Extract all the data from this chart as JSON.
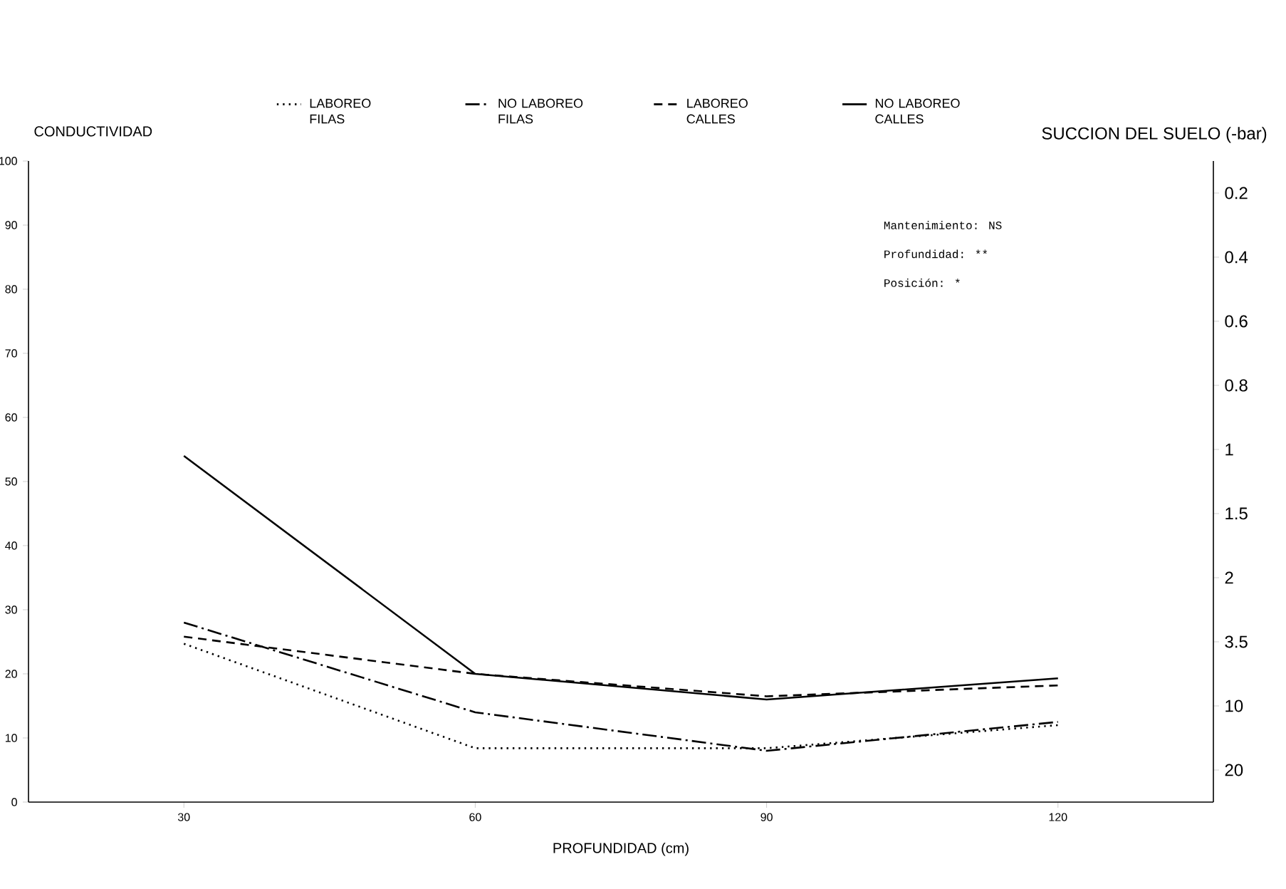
{
  "chart_data": {
    "type": "line",
    "x": [
      30,
      60,
      90,
      120
    ],
    "xlim": [
      14,
      136
    ],
    "xticks": [
      30,
      60,
      90,
      120
    ],
    "ylim": [
      0,
      100
    ],
    "yticks": [
      0,
      10,
      20,
      30,
      40,
      50,
      60,
      70,
      80,
      90,
      100
    ],
    "y2_categories": [
      "0.2",
      "0.4",
      "0.6",
      "0.8",
      "1",
      "1.5",
      "2",
      "3.5",
      "10",
      "20"
    ],
    "xlabel": "PROFUNDIDAD (cm)",
    "ylabel": "CONDUCTIVIDAD",
    "y2label": "SUCCION DEL SUELO (-bar)",
    "legend": "top",
    "annotations": [
      "Mantenimiento: NS",
      "Profundidad: **",
      "Posición: *"
    ],
    "series": [
      {
        "name": "LABOREO FILAS",
        "color": "#000000",
        "line_style": "dotted",
        "values": [
          24.7,
          8.4,
          8.4,
          12
        ]
      },
      {
        "name": "NO LABOREO FILAS",
        "color": "#000000",
        "line_style": "dashdot",
        "values": [
          28,
          14,
          8,
          12.5
        ]
      },
      {
        "name": "LABOREO CALLES",
        "color": "#000000",
        "line_style": "dashed",
        "values": [
          25.8,
          20,
          16.5,
          18.2
        ]
      },
      {
        "name": "NO LABOREO CALLES",
        "color": "#000000",
        "line_style": "solid",
        "values": [
          54,
          20,
          16,
          19.3
        ]
      }
    ]
  }
}
